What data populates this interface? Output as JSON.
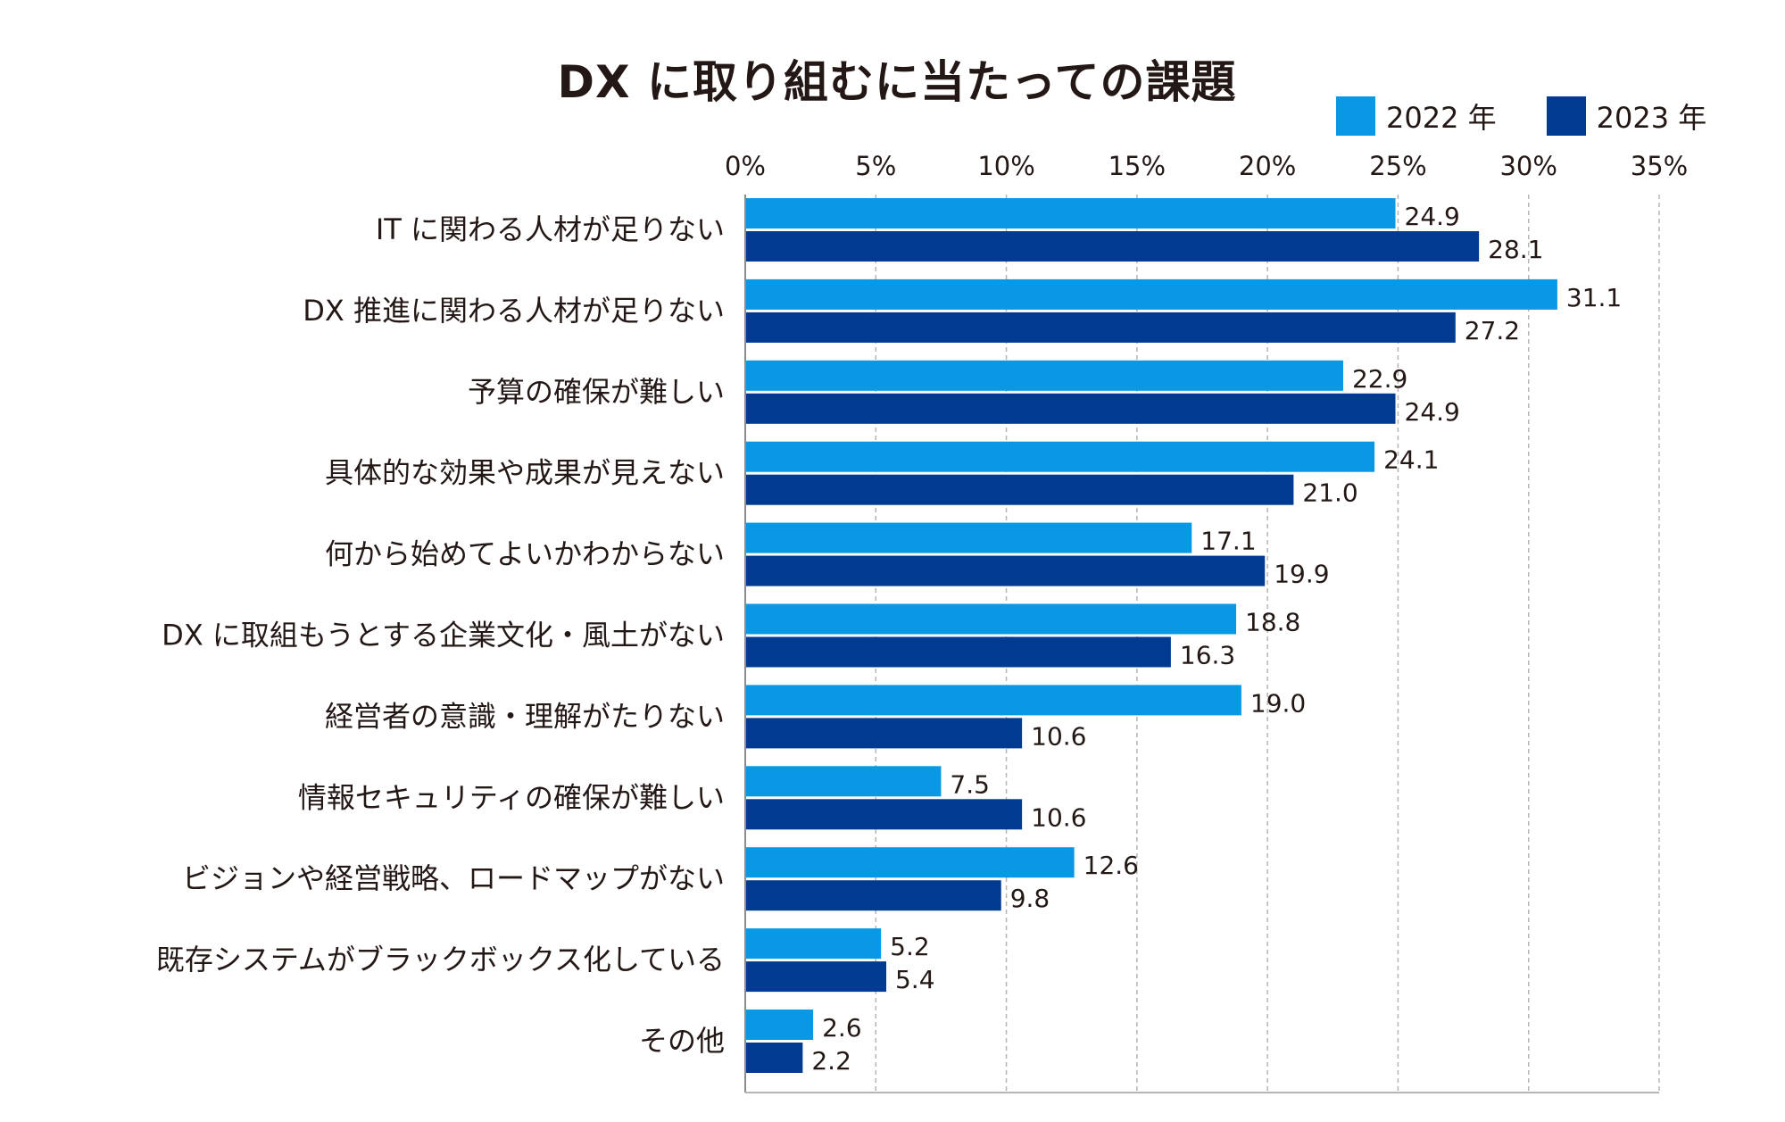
{
  "chart_data": {
    "type": "bar",
    "orientation": "horizontal",
    "title": "DX に取り組むに当たっての課題",
    "xlabel": "",
    "ylabel": "",
    "xlim": [
      0,
      35
    ],
    "x_ticks": [
      0,
      5,
      10,
      15,
      20,
      25,
      30,
      35
    ],
    "x_tick_labels": [
      "0%",
      "5%",
      "10%",
      "15%",
      "20%",
      "25%",
      "30%",
      "35%"
    ],
    "x_axis_position": "top",
    "grid": "vertical dashed",
    "legend_position": "top-right",
    "categories": [
      "IT に関わる人材が足りない",
      "DX 推進に関わる人材が足りない",
      "予算の確保が難しい",
      "具体的な効果や成果が見えない",
      "何から始めてよいかわからない",
      "DX に取組もうとする企業文化・風土がない",
      "経営者の意識・理解がたりない",
      "情報セキュリティの確保が難しい",
      "ビジョンや経営戦略、ロードマップがない",
      "既存システムがブラックボックス化している",
      "その他"
    ],
    "series": [
      {
        "name": "2022 年",
        "color": "#0998e4",
        "values": [
          24.9,
          31.1,
          22.9,
          24.1,
          17.1,
          18.8,
          19.0,
          7.5,
          12.6,
          5.2,
          2.6
        ],
        "labels": [
          "24.9",
          "31.1",
          "22.9",
          "24.1",
          "17.1",
          "18.8",
          "19.0",
          "7.5",
          "12.6",
          "5.2",
          "2.6"
        ]
      },
      {
        "name": "2023 年",
        "color": "#003a91",
        "values": [
          28.1,
          27.2,
          24.9,
          21.0,
          19.9,
          16.3,
          10.6,
          10.6,
          9.8,
          5.4,
          2.2
        ],
        "labels": [
          "28.1",
          "27.2",
          "24.9",
          "21.0",
          "19.9",
          "16.3",
          "10.6",
          "10.6",
          "9.8",
          "5.4",
          "2.2"
        ]
      }
    ]
  }
}
